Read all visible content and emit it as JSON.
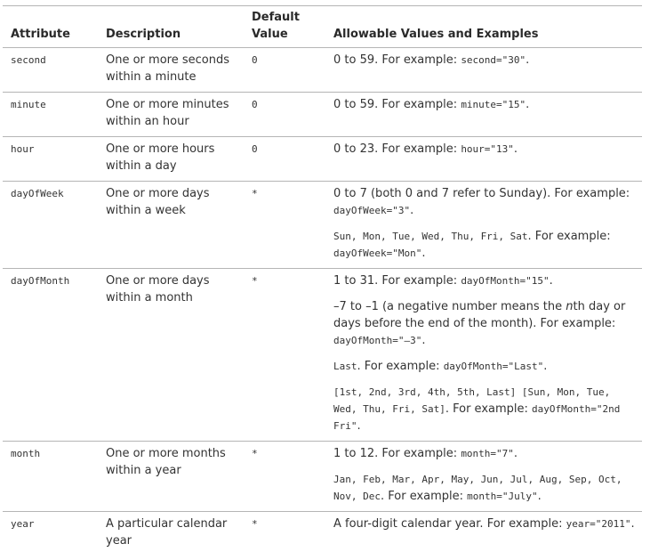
{
  "headers": {
    "attribute": "Attribute",
    "description": "Description",
    "default": "Default Value",
    "allowable": "Allowable Values and Examples"
  },
  "rows": [
    {
      "attribute": "second",
      "description": "One or more seconds within a minute",
      "default": "0",
      "values": [
        {
          "t1": "0 to 59. For example: ",
          "c1": "second=\"30\"",
          "t2": "."
        }
      ]
    },
    {
      "attribute": "minute",
      "description": "One or more minutes within an hour",
      "default": "0",
      "values": [
        {
          "t1": "0 to 59. For example: ",
          "c1": "minute=\"15\"",
          "t2": "."
        }
      ]
    },
    {
      "attribute": "hour",
      "description": "One or more hours within a day",
      "default": "0",
      "values": [
        {
          "t1": "0 to 23. For example: ",
          "c1": "hour=\"13\"",
          "t2": "."
        }
      ]
    },
    {
      "attribute": "dayOfWeek",
      "description": "One or more days within a week",
      "default": "*",
      "values": [
        {
          "t1": "0 to 7 (both 0 and 7 refer to Sunday). For example: ",
          "c1": "dayOfWeek=\"3\"",
          "t2": "."
        },
        {
          "c0": "Sun, Mon, Tue, Wed, Thu, Fri, Sat",
          "t1": ". For example: ",
          "c1": "dayOfWeek=\"Mon\"",
          "t2": "."
        }
      ]
    },
    {
      "attribute": "dayOfMonth",
      "description": "One or more days within a month",
      "default": "*",
      "values": [
        {
          "t1": "1 to 31. For example: ",
          "c1": "dayOfMonth=\"15\"",
          "t2": "."
        },
        {
          "t1": "–7 to –1 (a negative number means the ",
          "i": "n",
          "t1b": "th day or days before the end of the month). For example: ",
          "c1": "dayOfMonth=\"–3\"",
          "t2": "."
        },
        {
          "c0": "Last",
          "t1": ". For example: ",
          "c1": "dayOfMonth=\"Last\"",
          "t2": "."
        },
        {
          "c0": "[1st, 2nd, 3rd, 4th, 5th, Last] [Sun, Mon, Tue, Wed, Thu, Fri, Sat]",
          "t1": ". For example: ",
          "c1": "dayOfMonth=\"2nd Fri\"",
          "t2": "."
        }
      ]
    },
    {
      "attribute": "month",
      "description": "One or more months within a year",
      "default": "*",
      "values": [
        {
          "t1": "1 to 12. For example: ",
          "c1": "month=\"7\"",
          "t2": "."
        },
        {
          "c0": "Jan, Feb, Mar, Apr, May, Jun, Jul, Aug, Sep, Oct, Nov, Dec",
          "t1": ". For example: ",
          "c1": "month=\"July\"",
          "t2": "."
        }
      ]
    },
    {
      "attribute": "year",
      "description": "A particular calendar year",
      "default": "*",
      "values": [
        {
          "t1": "A four-digit calendar year. For example: ",
          "c1": "year=\"2011\"",
          "t2": "."
        }
      ]
    }
  ]
}
